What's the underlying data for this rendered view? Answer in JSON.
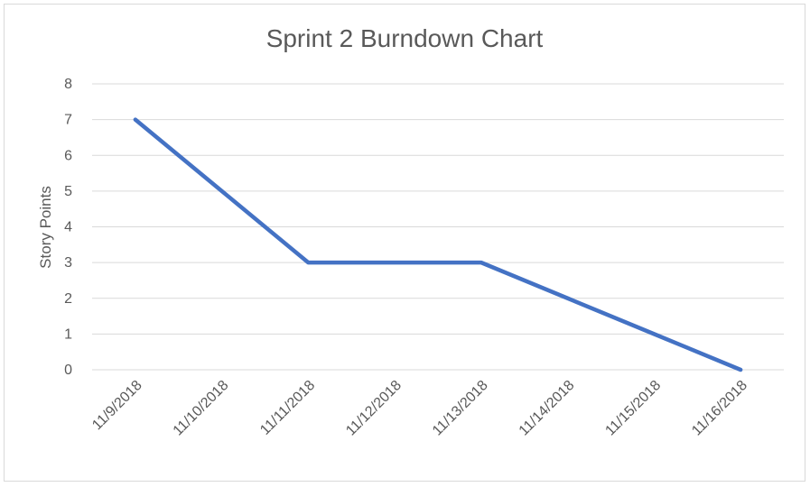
{
  "chart_data": {
    "type": "line",
    "title": "Sprint 2 Burndown Chart",
    "xlabel": "",
    "ylabel": "Story Points",
    "categories": [
      "11/9/2018",
      "11/10/2018",
      "11/11/2018",
      "11/12/2018",
      "11/13/2018",
      "11/14/2018",
      "11/15/2018",
      "11/16/2018"
    ],
    "series": [
      {
        "values": [
          7,
          5,
          3,
          3,
          3,
          2,
          1,
          0
        ],
        "color": "#4472c4"
      }
    ],
    "ylim": [
      0,
      8
    ],
    "yticks": [
      0,
      1,
      2,
      3,
      4,
      5,
      6,
      7,
      8
    ],
    "grid": true,
    "legend": "none"
  }
}
